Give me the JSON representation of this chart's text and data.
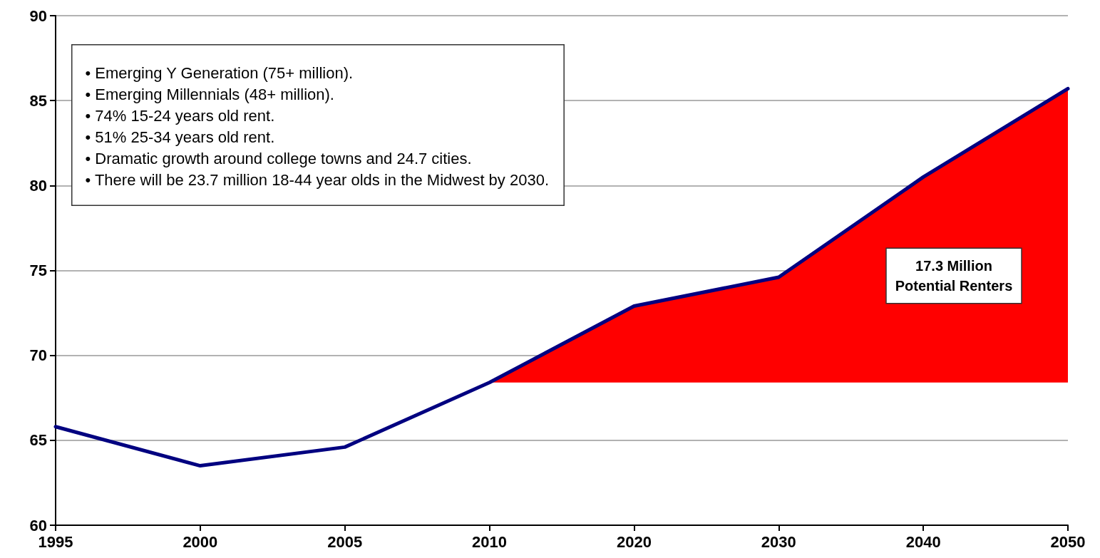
{
  "chart_data": {
    "type": "line",
    "categories": [
      "1995",
      "2000",
      "2005",
      "2010",
      "2020",
      "2030",
      "2040",
      "2050"
    ],
    "series": [
      {
        "type": "area",
        "color": "#ff0000",
        "values": [
          null,
          null,
          null,
          68.4,
          72.9,
          74.6,
          80.5,
          85.7
        ]
      },
      {
        "color": "#000080",
        "values": [
          65.8,
          63.5,
          64.6,
          68.4,
          72.9,
          74.6,
          80.5,
          85.7
        ]
      }
    ],
    "ylim": [
      60,
      90
    ],
    "yticks": [
      60,
      65,
      70,
      75,
      80,
      85,
      90
    ],
    "grid": "y",
    "marker": "none",
    "line_style": "solid",
    "annotations": [
      "• Emerging Y Generation (75+ million).",
      "• Emerging Millennials (48+ million).",
      "• 74% 15-24 years old rent.",
      "• 51% 25-34 years old rent.",
      "• Dramatic growth around college towns and 24.7 cities.",
      "• There will be 23.7 million 18-44 year olds in the Midwest by 2030.",
      "17.3 Million\nPotential Renters"
    ]
  }
}
